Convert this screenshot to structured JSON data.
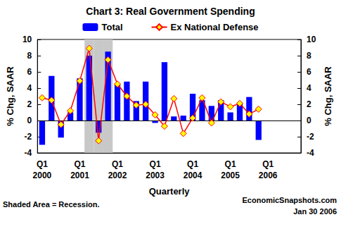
{
  "chart_data": {
    "type": "bar",
    "title": "Chart 3: Real Government Spending",
    "categories": [
      "Q1 2000",
      null,
      null,
      null,
      "Q1 2001",
      null,
      null,
      null,
      "Q1 2002",
      null,
      null,
      null,
      "Q1 2003",
      null,
      null,
      null,
      "Q1 2004",
      null,
      null,
      null,
      "Q1 2005",
      null,
      null,
      null,
      "Q1 2006",
      null,
      null,
      null
    ],
    "series": [
      {
        "name": "Total",
        "type": "bar",
        "color": "#0000ff",
        "values": [
          -3.0,
          5.5,
          -2.1,
          1.0,
          5.2,
          8.0,
          -1.5,
          8.5,
          4.5,
          4.8,
          2.4,
          4.8,
          -0.3,
          7.2,
          0.5,
          0.6,
          3.3,
          2.5,
          1.8,
          2.5,
          1.0,
          2.2,
          2.9,
          -2.4,
          null,
          null,
          null,
          null
        ]
      },
      {
        "name": "Ex National Defense",
        "type": "line",
        "color": "#ff0000",
        "marker": "diamond",
        "axis": "y2",
        "values": [
          2.8,
          2.5,
          -0.5,
          1.2,
          4.9,
          8.9,
          -2.5,
          7.5,
          4.5,
          3.0,
          1.9,
          2.0,
          0.7,
          -0.7,
          2.7,
          -1.6,
          0.3,
          2.8,
          -0.3,
          2.3,
          1.7,
          2.1,
          0.8,
          1.4,
          null,
          null,
          null,
          null
        ]
      }
    ],
    "recession": [
      false,
      false,
      false,
      false,
      false,
      true,
      true,
      true,
      false,
      false,
      false,
      false,
      false,
      false,
      false,
      false,
      false,
      false,
      false,
      false,
      false,
      false,
      false,
      false,
      false,
      false,
      false,
      false
    ],
    "ylabel": "% Chg, SAAR",
    "y2label": "% Chg, SAAR",
    "xlabel": "Quarterly",
    "ylim": [
      -4,
      10
    ],
    "yticks": [
      -4,
      -2,
      0,
      2,
      4,
      6,
      8,
      10
    ],
    "y2lim": [
      -4,
      10
    ],
    "y2ticks": [
      -4,
      -2,
      0,
      2,
      4,
      6,
      8,
      10
    ],
    "annotations": [
      "Shaded Area = Recession.",
      "EconomicSnapshots.com",
      "Jan 30 2006"
    ],
    "grid": false,
    "legend": "top"
  }
}
